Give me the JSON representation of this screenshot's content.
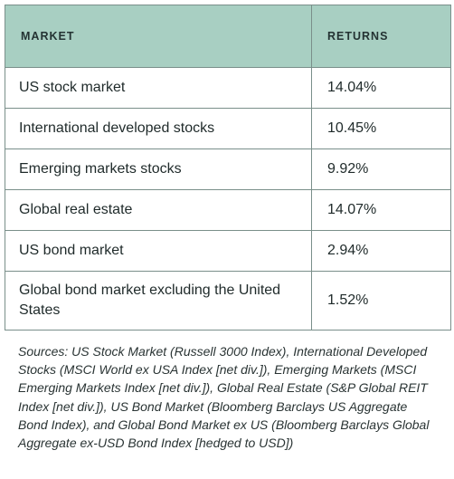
{
  "table": {
    "headers": [
      "MARKET",
      "RETURNS"
    ],
    "rows": [
      {
        "market": "US stock market",
        "returns": "14.04%"
      },
      {
        "market": "International developed stocks",
        "returns": "10.45%"
      },
      {
        "market": "Emerging markets stocks",
        "returns": "9.92%"
      },
      {
        "market": "Global real estate",
        "returns": "14.07%"
      },
      {
        "market": "US bond market",
        "returns": "2.94%"
      },
      {
        "market": "Global bond market excluding the United States",
        "returns": "1.52%"
      }
    ]
  },
  "sources": "Sources: US Stock Market (Russell 3000 Index), International Developed Stocks (MSCI World ex USA Index [net div.]), Emerging Markets (MSCI Emerging Markets Index [net div.]), Global Real Estate (S&P Global REIT Index [net div.]), US Bond Market (Bloomberg Barclays US Aggregate Bond Index), and Global Bond Market ex US (Bloomberg Barclays Global Aggregate ex-USD Bond Index [hedged to USD])",
  "colors": {
    "header_bg": "#a8cfc2",
    "border": "#7a8f8a"
  }
}
